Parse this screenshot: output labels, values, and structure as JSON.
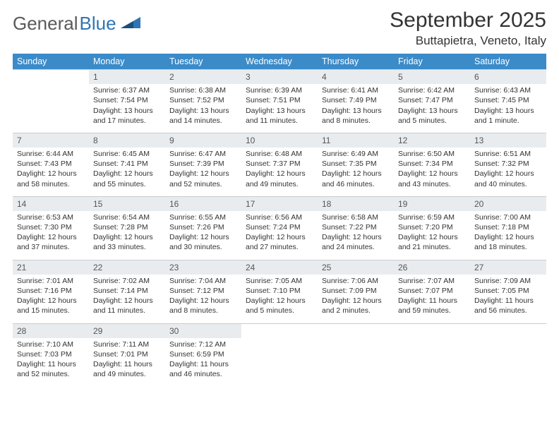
{
  "logo": {
    "text1": "General",
    "text2": "Blue"
  },
  "title": "September 2025",
  "location": "Buttapietra, Veneto, Italy",
  "colors": {
    "headerBg": "#3b8bc9",
    "headerText": "#ffffff",
    "dayNumBg": "#e9ecef",
    "border": "#9aa7b3",
    "bodyText": "#333333",
    "logoGray": "#5a5a5a",
    "logoBlue": "#2f75b5"
  },
  "weekdays": [
    "Sunday",
    "Monday",
    "Tuesday",
    "Wednesday",
    "Thursday",
    "Friday",
    "Saturday"
  ],
  "weeks": [
    {
      "nums": [
        "",
        "1",
        "2",
        "3",
        "4",
        "5",
        "6"
      ],
      "cells": [
        "",
        "Sunrise: 6:37 AM\nSunset: 7:54 PM\nDaylight: 13 hours and 17 minutes.",
        "Sunrise: 6:38 AM\nSunset: 7:52 PM\nDaylight: 13 hours and 14 minutes.",
        "Sunrise: 6:39 AM\nSunset: 7:51 PM\nDaylight: 13 hours and 11 minutes.",
        "Sunrise: 6:41 AM\nSunset: 7:49 PM\nDaylight: 13 hours and 8 minutes.",
        "Sunrise: 6:42 AM\nSunset: 7:47 PM\nDaylight: 13 hours and 5 minutes.",
        "Sunrise: 6:43 AM\nSunset: 7:45 PM\nDaylight: 13 hours and 1 minute."
      ]
    },
    {
      "nums": [
        "7",
        "8",
        "9",
        "10",
        "11",
        "12",
        "13"
      ],
      "cells": [
        "Sunrise: 6:44 AM\nSunset: 7:43 PM\nDaylight: 12 hours and 58 minutes.",
        "Sunrise: 6:45 AM\nSunset: 7:41 PM\nDaylight: 12 hours and 55 minutes.",
        "Sunrise: 6:47 AM\nSunset: 7:39 PM\nDaylight: 12 hours and 52 minutes.",
        "Sunrise: 6:48 AM\nSunset: 7:37 PM\nDaylight: 12 hours and 49 minutes.",
        "Sunrise: 6:49 AM\nSunset: 7:35 PM\nDaylight: 12 hours and 46 minutes.",
        "Sunrise: 6:50 AM\nSunset: 7:34 PM\nDaylight: 12 hours and 43 minutes.",
        "Sunrise: 6:51 AM\nSunset: 7:32 PM\nDaylight: 12 hours and 40 minutes."
      ]
    },
    {
      "nums": [
        "14",
        "15",
        "16",
        "17",
        "18",
        "19",
        "20"
      ],
      "cells": [
        "Sunrise: 6:53 AM\nSunset: 7:30 PM\nDaylight: 12 hours and 37 minutes.",
        "Sunrise: 6:54 AM\nSunset: 7:28 PM\nDaylight: 12 hours and 33 minutes.",
        "Sunrise: 6:55 AM\nSunset: 7:26 PM\nDaylight: 12 hours and 30 minutes.",
        "Sunrise: 6:56 AM\nSunset: 7:24 PM\nDaylight: 12 hours and 27 minutes.",
        "Sunrise: 6:58 AM\nSunset: 7:22 PM\nDaylight: 12 hours and 24 minutes.",
        "Sunrise: 6:59 AM\nSunset: 7:20 PM\nDaylight: 12 hours and 21 minutes.",
        "Sunrise: 7:00 AM\nSunset: 7:18 PM\nDaylight: 12 hours and 18 minutes."
      ]
    },
    {
      "nums": [
        "21",
        "22",
        "23",
        "24",
        "25",
        "26",
        "27"
      ],
      "cells": [
        "Sunrise: 7:01 AM\nSunset: 7:16 PM\nDaylight: 12 hours and 15 minutes.",
        "Sunrise: 7:02 AM\nSunset: 7:14 PM\nDaylight: 12 hours and 11 minutes.",
        "Sunrise: 7:04 AM\nSunset: 7:12 PM\nDaylight: 12 hours and 8 minutes.",
        "Sunrise: 7:05 AM\nSunset: 7:10 PM\nDaylight: 12 hours and 5 minutes.",
        "Sunrise: 7:06 AM\nSunset: 7:09 PM\nDaylight: 12 hours and 2 minutes.",
        "Sunrise: 7:07 AM\nSunset: 7:07 PM\nDaylight: 11 hours and 59 minutes.",
        "Sunrise: 7:09 AM\nSunset: 7:05 PM\nDaylight: 11 hours and 56 minutes."
      ]
    },
    {
      "nums": [
        "28",
        "29",
        "30",
        "",
        "",
        "",
        ""
      ],
      "cells": [
        "Sunrise: 7:10 AM\nSunset: 7:03 PM\nDaylight: 11 hours and 52 minutes.",
        "Sunrise: 7:11 AM\nSunset: 7:01 PM\nDaylight: 11 hours and 49 minutes.",
        "Sunrise: 7:12 AM\nSunset: 6:59 PM\nDaylight: 11 hours and 46 minutes.",
        "",
        "",
        "",
        ""
      ]
    }
  ]
}
